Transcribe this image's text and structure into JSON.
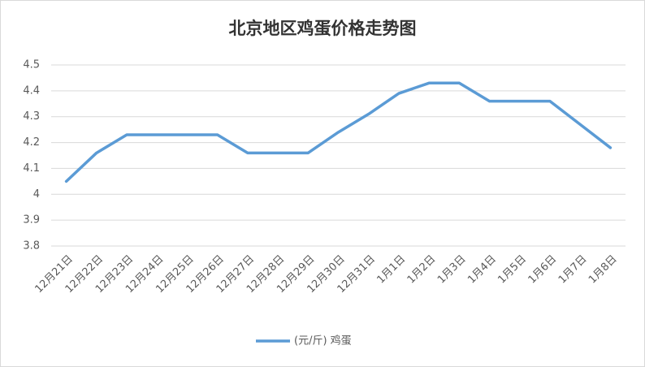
{
  "chart_data": {
    "type": "line",
    "title": "北京地区鸡蛋价格走势图",
    "categories": [
      "12月21日",
      "12月22日",
      "12月23日",
      "12月24日",
      "12月25日",
      "12月26日",
      "12月27日",
      "12月28日",
      "12月29日",
      "12月30日",
      "12月31日",
      "1月1日",
      "1月2日",
      "1月3日",
      "1月4日",
      "1月5日",
      "1月6日",
      "1月7日",
      "1月8日"
    ],
    "series": [
      {
        "name": "(元/斤) 鸡蛋",
        "color": "#5b9bd5",
        "values": [
          4.05,
          4.16,
          4.23,
          4.23,
          4.23,
          4.23,
          4.16,
          4.16,
          4.16,
          4.24,
          4.31,
          4.39,
          4.43,
          4.43,
          4.36,
          4.36,
          4.36,
          4.27,
          4.18
        ]
      }
    ],
    "ylim": [
      3.8,
      4.5
    ],
    "yticks": [
      3.8,
      3.9,
      4,
      4.1,
      4.2,
      4.3,
      4.4,
      4.5
    ],
    "grid": true,
    "legend": "bottom"
  }
}
